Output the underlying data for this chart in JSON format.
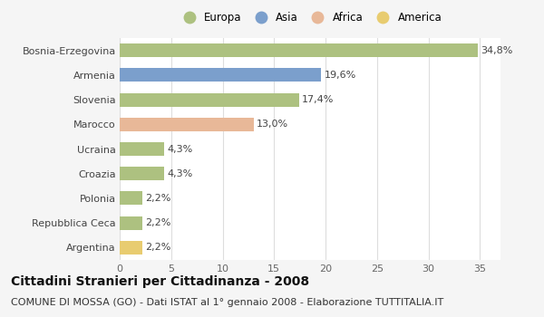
{
  "categories": [
    "Bosnia-Erzegovina",
    "Armenia",
    "Slovenia",
    "Marocco",
    "Ucraina",
    "Croazia",
    "Polonia",
    "Repubblica Ceca",
    "Argentina"
  ],
  "values": [
    34.8,
    19.6,
    17.4,
    13.0,
    4.3,
    4.3,
    2.2,
    2.2,
    2.2
  ],
  "labels": [
    "34,8%",
    "19,6%",
    "17,4%",
    "13,0%",
    "4,3%",
    "4,3%",
    "2,2%",
    "2,2%",
    "2,2%"
  ],
  "colors": [
    "#adc180",
    "#7b9fcc",
    "#adc180",
    "#e8b898",
    "#adc180",
    "#adc180",
    "#adc180",
    "#adc180",
    "#e8cc70"
  ],
  "legend": [
    {
      "label": "Europa",
      "color": "#adc180"
    },
    {
      "label": "Asia",
      "color": "#7b9fcc"
    },
    {
      "label": "Africa",
      "color": "#e8b898"
    },
    {
      "label": "America",
      "color": "#e8cc70"
    }
  ],
  "xlim": [
    0,
    37
  ],
  "xticks": [
    0,
    5,
    10,
    15,
    20,
    25,
    30,
    35
  ],
  "title": "Cittadini Stranieri per Cittadinanza - 2008",
  "subtitle": "COMUNE DI MOSSA (GO) - Dati ISTAT al 1° gennaio 2008 - Elaborazione TUTTITALIA.IT",
  "background_color": "#f5f5f5",
  "plot_bg_color": "#ffffff",
  "grid_color": "#dddddd",
  "title_fontsize": 10,
  "subtitle_fontsize": 8,
  "bar_height": 0.55,
  "label_fontsize": 8,
  "ytick_fontsize": 8,
  "xtick_fontsize": 8
}
